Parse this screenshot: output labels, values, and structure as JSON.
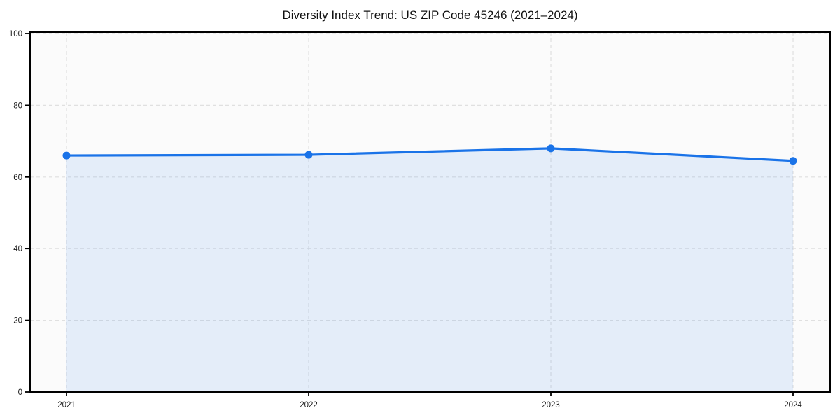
{
  "chart_data": {
    "type": "area",
    "title": "Diversity Index Trend: US ZIP Code 45246 (2021–2024)",
    "x_categories": [
      "2021",
      "2022",
      "2023",
      "2024"
    ],
    "series": [
      {
        "name": "Diversity Index",
        "values": [
          66.0,
          66.2,
          68.0,
          64.5
        ]
      }
    ],
    "xlabel": "",
    "ylabel": "",
    "ylim": [
      0,
      100
    ],
    "yticks": [
      0,
      20,
      40,
      60,
      80,
      100
    ],
    "grid": "dashed",
    "legend": "none",
    "marker": "circle",
    "colors": {
      "line": "#1a73e8",
      "marker": "#1a73e8",
      "area_fill": "rgba(26,115,232,0.10)",
      "gridline": "#e0e0e0",
      "axis_border": "#000000",
      "plot_background": "#fbfbfb",
      "figure_background": "#ffffff",
      "tick_label": "#1a1a1a",
      "title_text": "#111111"
    }
  }
}
